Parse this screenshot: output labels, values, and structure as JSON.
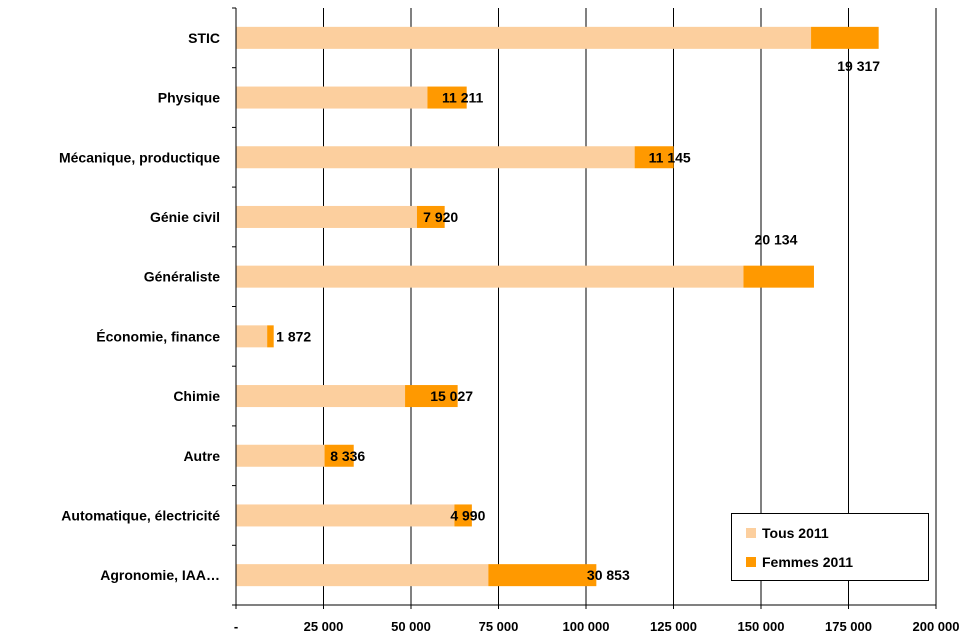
{
  "colors": {
    "tous": "#FCCF9E",
    "femmes": "#FF9900",
    "axis": "#000000",
    "grid": "#000000"
  },
  "chart_data": {
    "type": "bar",
    "orientation": "horizontal",
    "stacked": true,
    "categories": [
      "STIC",
      "Physique",
      "Mécanique, productique",
      "Génie civil",
      "Généraliste",
      "Économie, finance",
      "Chimie",
      "Autre",
      "Automatique, électricité",
      "Agronomie, IAA…"
    ],
    "series": [
      {
        "name": "Tous 2011",
        "values": [
          164300,
          54700,
          113900,
          51700,
          145000,
          8900,
          48300,
          25300,
          62400,
          72100
        ]
      },
      {
        "name": "Femmes 2011",
        "values": [
          19317,
          11211,
          11145,
          7920,
          20134,
          1872,
          15027,
          8336,
          4990,
          30853
        ]
      }
    ],
    "data_labels": [
      "19 317",
      "11 211",
      "11 145",
      "7 920",
      "20 134",
      "1 872",
      "15 027",
      "8 336",
      "4 990",
      "30 853"
    ],
    "xlim": [
      0,
      200000
    ],
    "xticks": [
      0,
      25000,
      50000,
      75000,
      100000,
      125000,
      150000,
      175000,
      200000
    ],
    "xtick_labels": [
      "-",
      "25 000",
      "50 000",
      "75 000",
      "100 000",
      "125 000",
      "150 000",
      "175 000",
      "200 000"
    ],
    "grid": "vertical",
    "legend_position": "bottom-right",
    "title": "",
    "xlabel": "",
    "ylabel": ""
  },
  "legend": {
    "items": [
      {
        "label": "Tous 2011"
      },
      {
        "label": "Femmes 2011"
      }
    ]
  }
}
